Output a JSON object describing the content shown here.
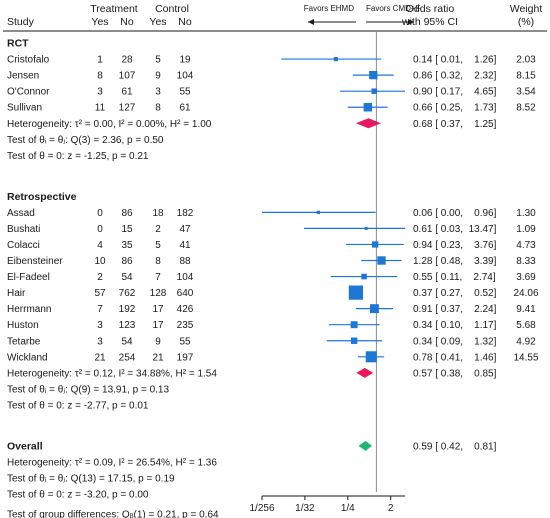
{
  "header": {
    "group": "Treatment",
    "group2": "Control",
    "study": "Study",
    "yes": "Yes",
    "no": "No",
    "favors_left": "Favors EHMD",
    "favors_right": "Favors CMD+F",
    "or_line1": "Odds ratio",
    "or_line2": "with 95% CI",
    "weight_line1": "Weight",
    "weight_line2": "(%)"
  },
  "colors": {
    "study_marker": "#1f77d4",
    "subgroup_diamond": "#e6195b",
    "overall_diamond": "#22b573",
    "reference_line": "#8c8c8c"
  },
  "chart_data": {
    "type": "forest",
    "x_scale": "log2",
    "xlim": [
      0.00390625,
      4
    ],
    "x_ticks": [
      0.00390625,
      0.03125,
      0.25,
      2
    ],
    "x_tick_labels": [
      "1/256",
      "1/32",
      "1/4",
      "2"
    ],
    "reference_value": 1,
    "groups": [
      {
        "name": "RCT",
        "studies": [
          {
            "study": "Cristofalo",
            "t_yes": "1",
            "t_no": "28",
            "c_yes": "5",
            "c_no": "19",
            "or": 0.14,
            "lo": 0.01,
            "hi": 1.26,
            "or_text": "0.14 [ 0.01,    1.26]",
            "weight": 2.03,
            "weight_text": "2.03"
          },
          {
            "study": "Jensen",
            "t_yes": "8",
            "t_no": "107",
            "c_yes": "9",
            "c_no": "104",
            "or": 0.86,
            "lo": 0.32,
            "hi": 2.32,
            "or_text": "0.86 [ 0.32,    2.32]",
            "weight": 8.15,
            "weight_text": "8.15"
          },
          {
            "study": "O'Connor",
            "t_yes": "3",
            "t_no": "61",
            "c_yes": "3",
            "c_no": "55",
            "or": 0.9,
            "lo": 0.17,
            "hi": 4.65,
            "or_text": "0.90 [ 0.17,    4.65]",
            "weight": 3.54,
            "weight_text": "3.54"
          },
          {
            "study": "Sullivan",
            "t_yes": "11",
            "t_no": "127",
            "c_yes": "8",
            "c_no": "61",
            "or": 0.66,
            "lo": 0.25,
            "hi": 1.73,
            "or_text": "0.66 [ 0.25,    1.73]",
            "weight": 8.52,
            "weight_text": "8.52"
          }
        ],
        "pooled": {
          "or": 0.68,
          "lo": 0.37,
          "hi": 1.25,
          "or_text": "0.68 [ 0.37,    1.25]"
        },
        "stats": [
          "Heterogeneity: τ² = 0.00, I² = 0.00%, H² = 1.00",
          "Test of θᵢ = θⱼ: Q(3) = 2.36, p = 0.50",
          "Test of θ = 0: z = -1.25, p = 0.21"
        ]
      },
      {
        "name": "Retrospective",
        "studies": [
          {
            "study": "Assad",
            "t_yes": "0",
            "t_no": "86",
            "c_yes": "18",
            "c_no": "182",
            "or": 0.06,
            "lo": 0.0,
            "hi": 0.96,
            "or_text": "0.06 [ 0.00,    0.96]",
            "weight": 1.3,
            "weight_text": "1.30"
          },
          {
            "study": "Bushati",
            "t_yes": "0",
            "t_no": "15",
            "c_yes": "2",
            "c_no": "47",
            "or": 0.61,
            "lo": 0.03,
            "hi": 13.47,
            "or_text": "0.61 [ 0.03,  13.47]",
            "weight": 1.09,
            "weight_text": "1.09"
          },
          {
            "study": "Colacci",
            "t_yes": "4",
            "t_no": "35",
            "c_yes": "5",
            "c_no": "41",
            "or": 0.94,
            "lo": 0.23,
            "hi": 3.76,
            "or_text": "0.94 [ 0.23,    3.76]",
            "weight": 4.73,
            "weight_text": "4.73"
          },
          {
            "study": "Eibensteiner",
            "t_yes": "10",
            "t_no": "86",
            "c_yes": "8",
            "c_no": "88",
            "or": 1.28,
            "lo": 0.48,
            "hi": 3.39,
            "or_text": "1.28 [ 0.48,    3.39]",
            "weight": 8.33,
            "weight_text": "8.33"
          },
          {
            "study": "El-Fadeel",
            "t_yes": "2",
            "t_no": "54",
            "c_yes": "7",
            "c_no": "104",
            "or": 0.55,
            "lo": 0.11,
            "hi": 2.74,
            "or_text": "0.55 [ 0.11,    2.74]",
            "weight": 3.69,
            "weight_text": "3.69"
          },
          {
            "study": "Hair",
            "t_yes": "57",
            "t_no": "762",
            "c_yes": "128",
            "c_no": "640",
            "or": 0.37,
            "lo": 0.27,
            "hi": 0.52,
            "or_text": "0.37 [ 0.27,    0.52]",
            "weight": 24.06,
            "weight_text": "24.06"
          },
          {
            "study": "Herrmann",
            "t_yes": "7",
            "t_no": "192",
            "c_yes": "17",
            "c_no": "426",
            "or": 0.91,
            "lo": 0.37,
            "hi": 2.24,
            "or_text": "0.91 [ 0.37,    2.24]",
            "weight": 9.41,
            "weight_text": "9.41"
          },
          {
            "study": "Huston",
            "t_yes": "3",
            "t_no": "123",
            "c_yes": "17",
            "c_no": "235",
            "or": 0.34,
            "lo": 0.1,
            "hi": 1.17,
            "or_text": "0.34 [ 0.10,    1.17]",
            "weight": 5.68,
            "weight_text": "5.68"
          },
          {
            "study": "Tetarbe",
            "t_yes": "3",
            "t_no": "54",
            "c_yes": "9",
            "c_no": "55",
            "or": 0.34,
            "lo": 0.09,
            "hi": 1.32,
            "or_text": "0.34 [ 0.09,    1.32]",
            "weight": 4.92,
            "weight_text": "4.92"
          },
          {
            "study": "Wickland",
            "t_yes": "21",
            "t_no": "254",
            "c_yes": "21",
            "c_no": "197",
            "or": 0.78,
            "lo": 0.41,
            "hi": 1.46,
            "or_text": "0.78 [ 0.41,    1.46]",
            "weight": 14.55,
            "weight_text": "14.55"
          }
        ],
        "pooled": {
          "or": 0.57,
          "lo": 0.38,
          "hi": 0.85,
          "or_text": "0.57 [ 0.38,    0.85]"
        },
        "stats": [
          "Heterogeneity: τ² = 0.12, I² = 34.88%, H² = 1.54",
          "Test of θᵢ = θⱼ: Q(9) = 13.91, p = 0.13",
          "Test of θ = 0: z = -2.77, p = 0.01"
        ]
      }
    ],
    "overall": {
      "name": "Overall",
      "or": 0.59,
      "lo": 0.42,
      "hi": 0.81,
      "or_text": "0.59 [ 0.42,    0.81]",
      "stats": [
        "Heterogeneity: τ² = 0.09, I² = 26.54%, H² = 1.36",
        "Test of θᵢ = θⱼ: Q(13) = 17.15, p = 0.19",
        "Test of θ = 0: z = -3.20, p = 0.00"
      ]
    },
    "group_difference": "Test of group differences: Qᵦ(1) = 0.21, p = 0.64"
  }
}
